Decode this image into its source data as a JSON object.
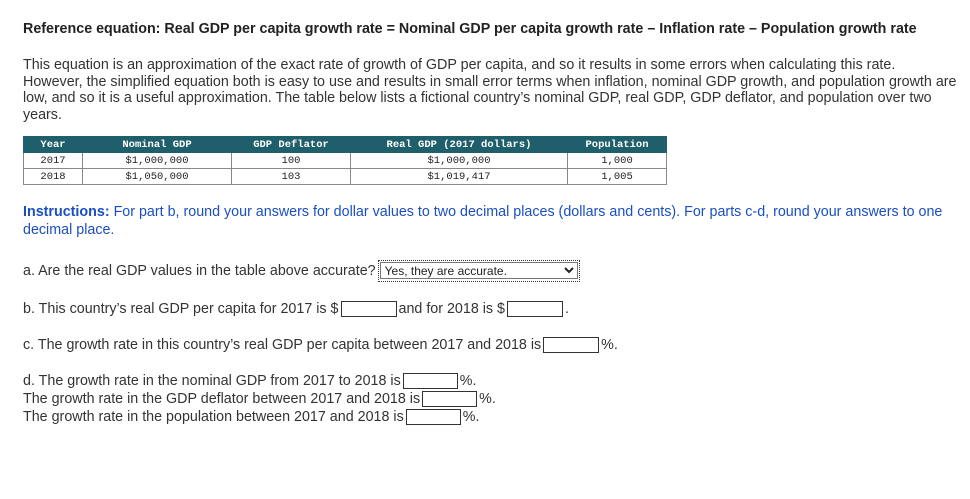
{
  "reference": "Reference equation: Real GDP per capita growth rate = Nominal GDP per capita growth rate – Inflation rate – Population growth rate",
  "intro": "This equation is an approximation of the exact rate of growth of GDP per capita, and so it results in some errors when calculating this rate. However, the simplified equation both is easy to use and results in small error terms when inflation, nominal GDP growth, and population growth are low, and so it is a useful approximation. The table below lists a fictional country’s nominal GDP, real GDP, GDP deflator, and population over two years.",
  "table": {
    "headers": [
      "Year",
      "Nominal GDP",
      "GDP Deflator",
      "Real GDP (2017 dollars)",
      "Population"
    ],
    "rows": [
      [
        "2017",
        "$1,000,000",
        "100",
        "$1,000,000",
        "1,000"
      ],
      [
        "2018",
        "$1,050,000",
        "103",
        "$1,019,417",
        "1,005"
      ]
    ]
  },
  "instructions": {
    "label": "Instructions:",
    "text": "For part b, round your answers for dollar values to two decimal places (dollars and cents). For parts c-d, round your answers to one decimal place."
  },
  "qa": {
    "text": "a. Are the real GDP values in the table above accurate?",
    "selected": "Yes, they are accurate."
  },
  "qb": {
    "text1": "b. This country’s real GDP per capita for 2017 is $",
    "text2": "and for 2018 is $",
    "text3": "."
  },
  "qc": {
    "text": "c. The growth rate in this country’s real GDP per capita between 2017 and 2018 is",
    "suffix": "%."
  },
  "qd": {
    "line1": "d. The growth rate in the nominal GDP from 2017 to 2018 is",
    "line2": "The growth rate in the GDP deflator between 2017 and 2018 is",
    "line3": "The growth rate in the population between 2017 and 2018 is",
    "suffix": "%."
  }
}
